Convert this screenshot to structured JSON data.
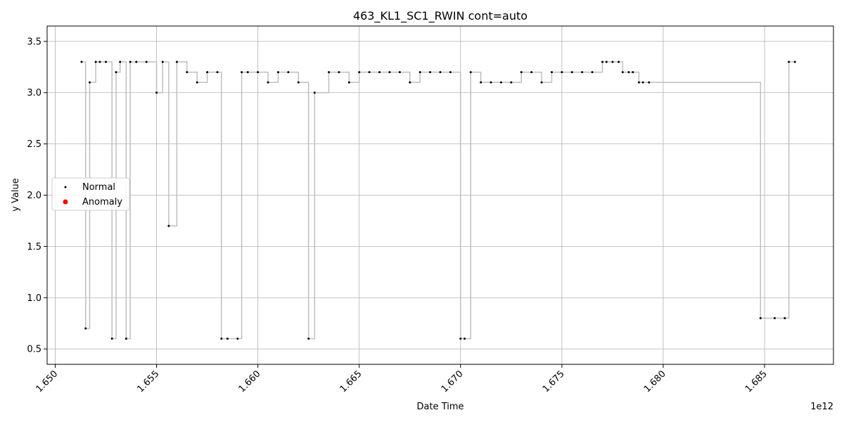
{
  "chart_data": {
    "type": "scatter",
    "title": "463_KL1_SC1_RWIN cont=auto",
    "xlabel": "Date Time",
    "ylabel": "y Value",
    "x_offset_label": "1e12",
    "xlim": [
      1.6496,
      1.6884
    ],
    "ylim": [
      0.35,
      3.65
    ],
    "x_ticks": [
      1.65,
      1.655,
      1.66,
      1.665,
      1.67,
      1.675,
      1.68,
      1.685
    ],
    "x_tick_labels": [
      "1.650",
      "1.655",
      "1.660",
      "1.665",
      "1.670",
      "1.675",
      "1.680",
      "1.685"
    ],
    "y_ticks": [
      0.5,
      1.0,
      1.5,
      2.0,
      2.5,
      3.0,
      3.5
    ],
    "y_tick_labels": [
      "0.5",
      "1.0",
      "1.5",
      "2.0",
      "2.5",
      "3.0",
      "3.5"
    ],
    "grid": true,
    "legend_position": "center-left",
    "line_color": "#bfbfbf",
    "series": [
      {
        "name": "Normal",
        "color": "#000000",
        "x": [
          1.6513,
          1.6515,
          1.6517,
          1.652,
          1.6522,
          1.6525,
          1.6528,
          1.653,
          1.6532,
          1.6535,
          1.6537,
          1.654,
          1.6545,
          1.655,
          1.6553,
          1.6556,
          1.656,
          1.6565,
          1.657,
          1.6575,
          1.658,
          1.6582,
          1.6585,
          1.659,
          1.6592,
          1.6595,
          1.66,
          1.6605,
          1.661,
          1.6615,
          1.662,
          1.6625,
          1.6628,
          1.6635,
          1.664,
          1.6645,
          1.665,
          1.6655,
          1.666,
          1.6665,
          1.667,
          1.6675,
          1.668,
          1.6685,
          1.669,
          1.6695,
          1.67,
          1.6702,
          1.6705,
          1.671,
          1.6715,
          1.672,
          1.6725,
          1.673,
          1.6735,
          1.674,
          1.6745,
          1.675,
          1.6755,
          1.676,
          1.6765,
          1.677,
          1.6772,
          1.6775,
          1.6778,
          1.678,
          1.6783,
          1.6785,
          1.6788,
          1.679,
          1.6793,
          1.6848,
          1.6855,
          1.686,
          1.6862,
          1.6865
        ],
        "y": [
          3.3,
          0.7,
          3.1,
          3.3,
          3.3,
          3.3,
          0.6,
          3.2,
          3.3,
          0.6,
          3.3,
          3.3,
          3.3,
          3.0,
          3.3,
          1.7,
          3.3,
          3.2,
          3.1,
          3.2,
          3.2,
          0.6,
          0.6,
          0.6,
          3.2,
          3.2,
          3.2,
          3.1,
          3.2,
          3.2,
          3.1,
          0.6,
          3.0,
          3.2,
          3.2,
          3.1,
          3.2,
          3.2,
          3.2,
          3.2,
          3.2,
          3.1,
          3.2,
          3.2,
          3.2,
          3.2,
          0.6,
          0.6,
          3.2,
          3.1,
          3.1,
          3.1,
          3.1,
          3.2,
          3.2,
          3.1,
          3.2,
          3.2,
          3.2,
          3.2,
          3.2,
          3.3,
          3.3,
          3.3,
          3.3,
          3.2,
          3.2,
          3.2,
          3.1,
          3.1,
          3.1,
          0.8,
          0.8,
          0.8,
          3.3,
          3.3
        ]
      },
      {
        "name": "Anomaly",
        "color": "#ff0000",
        "x": [],
        "y": []
      }
    ]
  }
}
